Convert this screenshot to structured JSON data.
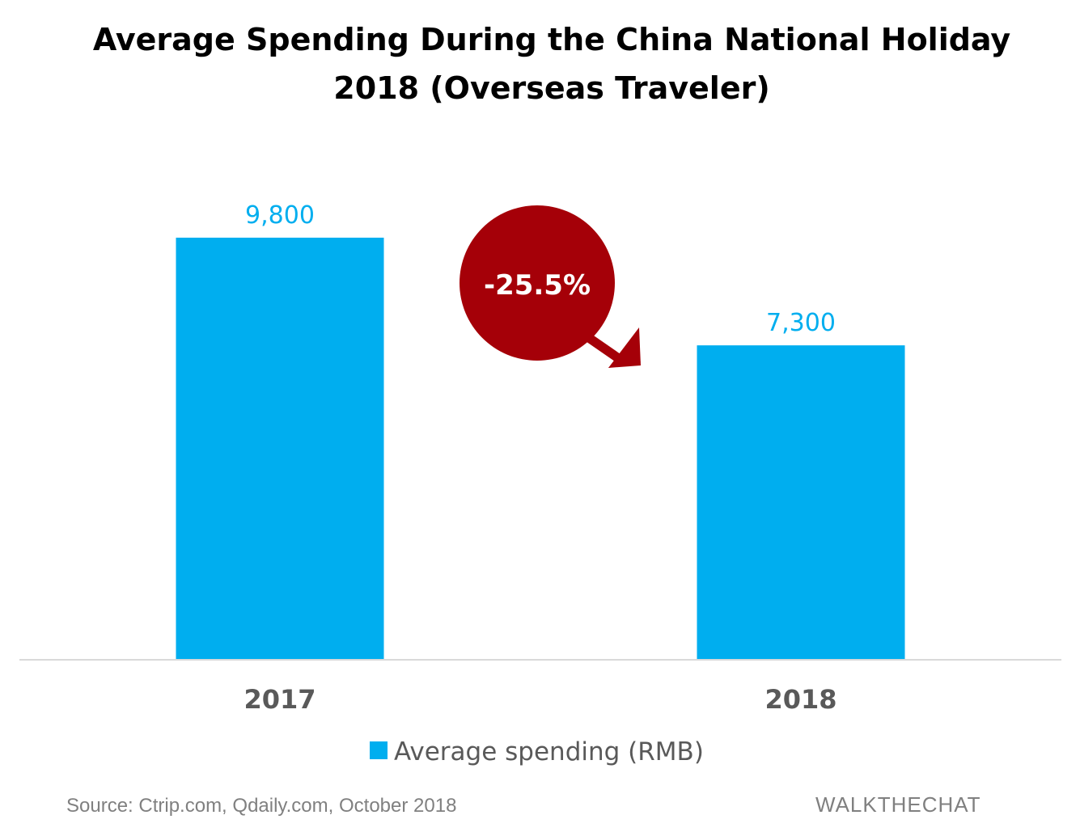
{
  "chart_data": {
    "type": "bar",
    "title_line1": "Average Spending During the China National Holiday",
    "title_line2": "2018  (Overseas Traveler)",
    "categories": [
      "2017",
      "2018"
    ],
    "series": [
      {
        "name": "Average spending (RMB)",
        "values": [
          9800,
          7300
        ],
        "value_labels": [
          "9,800",
          "7,300"
        ],
        "color": "#00aeef"
      }
    ],
    "ylim": [
      0,
      10700
    ],
    "grid": false,
    "legend_position": "bottom",
    "annotation": {
      "text": "-25.5%",
      "color": "#a50008"
    },
    "source": "Source: Ctrip.com, Qdaily.com, October 2018",
    "brand": "WALKTHECHAT"
  }
}
